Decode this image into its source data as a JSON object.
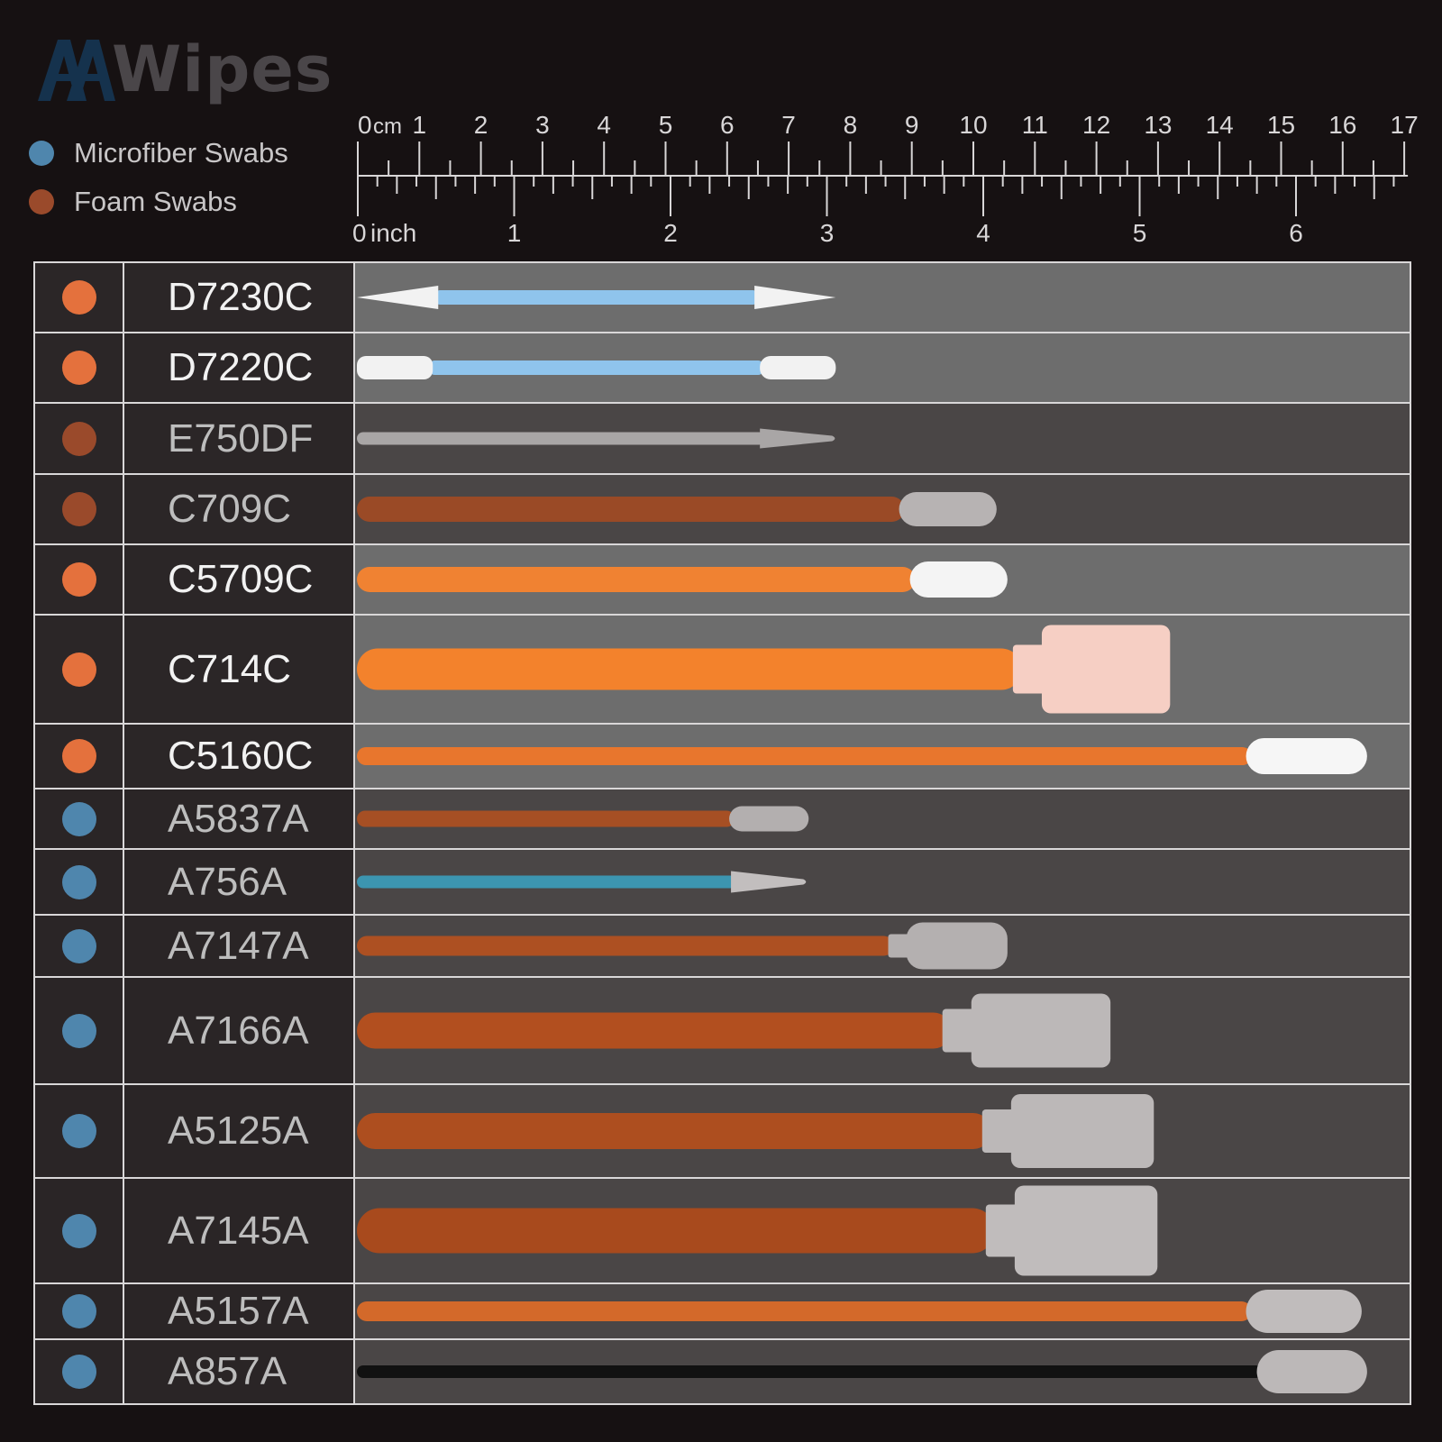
{
  "brand": {
    "logo_text": "Wipes",
    "logo_mark_text": "AA"
  },
  "colors": {
    "microfiber": "#4f86ad",
    "foam": "#e4713d",
    "foam_dark": "#9a4a2b"
  },
  "legend": [
    {
      "label": "Microfiber Swabs",
      "color": "#4f86ad"
    },
    {
      "label": "Foam Swabs",
      "color": "#9a4a2b"
    }
  ],
  "ruler": {
    "cm_unit": "cm",
    "cm_ticks": [
      "0",
      "1",
      "2",
      "3",
      "4",
      "5",
      "6",
      "7",
      "8",
      "9",
      "10",
      "11",
      "12",
      "13",
      "14",
      "15",
      "16",
      "17"
    ],
    "inch_unit": "inch",
    "inch_ticks": [
      "0",
      "1",
      "2",
      "3",
      "4",
      "5",
      "6"
    ]
  },
  "products": [
    {
      "code": "D7230C",
      "type": "foam",
      "dot_color": "#e4713d"
    },
    {
      "code": "D7220C",
      "type": "foam",
      "dot_color": "#e4713d"
    },
    {
      "code": "E750DF",
      "type": "foam-dark",
      "dot_color": "#9a4a2b"
    },
    {
      "code": "C709C",
      "type": "foam-dark",
      "dot_color": "#9a4a2b"
    },
    {
      "code": "C5709C",
      "type": "foam",
      "dot_color": "#e4713d"
    },
    {
      "code": "C714C",
      "type": "foam",
      "dot_color": "#e4713d"
    },
    {
      "code": "C5160C",
      "type": "foam",
      "dot_color": "#e4713d"
    },
    {
      "code": "A5837A",
      "type": "microfiber",
      "dot_color": "#4f86ad"
    },
    {
      "code": "A756A",
      "type": "microfiber",
      "dot_color": "#4f86ad"
    },
    {
      "code": "A7147A",
      "type": "microfiber",
      "dot_color": "#4f86ad"
    },
    {
      "code": "A7166A",
      "type": "microfiber",
      "dot_color": "#4f86ad"
    },
    {
      "code": "A5125A",
      "type": "microfiber",
      "dot_color": "#4f86ad"
    },
    {
      "code": "A7145A",
      "type": "microfiber",
      "dot_color": "#4f86ad"
    },
    {
      "code": "A5157A",
      "type": "microfiber",
      "dot_color": "#4f86ad"
    },
    {
      "code": "A857A",
      "type": "microfiber",
      "dot_color": "#4f86ad"
    }
  ]
}
